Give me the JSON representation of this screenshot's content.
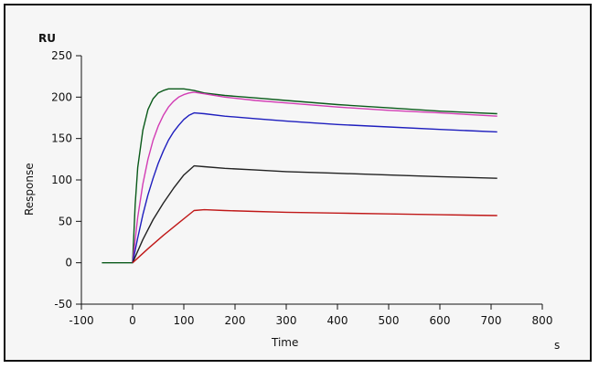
{
  "chart_data": {
    "type": "line",
    "title": "",
    "xlabel": "Time",
    "ylabel": "Response",
    "x_unit": "s",
    "y_unit": "RU",
    "xlim": [
      -100,
      800
    ],
    "ylim": [
      -50,
      250
    ],
    "x_ticks": [
      -100,
      0,
      100,
      200,
      300,
      400,
      500,
      600,
      700,
      800
    ],
    "y_ticks": [
      -50,
      0,
      50,
      100,
      150,
      200,
      250
    ],
    "grid": false,
    "series": [
      {
        "color": "#0a5a1a",
        "x": [
          -60,
          0,
          5,
          10,
          20,
          30,
          40,
          50,
          60,
          70,
          80,
          90,
          100,
          110,
          120,
          140,
          180,
          240,
          300,
          400,
          500,
          600,
          712
        ],
        "y": [
          0,
          0,
          70,
          115,
          160,
          185,
          198,
          205,
          208,
          210,
          210,
          210,
          210,
          209,
          208,
          205,
          202,
          199,
          196,
          191,
          187,
          183,
          180
        ]
      },
      {
        "color": "#d23cb4",
        "x": [
          0,
          10,
          20,
          30,
          40,
          50,
          60,
          70,
          80,
          90,
          100,
          110,
          120,
          140,
          180,
          240,
          300,
          400,
          500,
          600,
          712
        ],
        "y": [
          0,
          55,
          95,
          125,
          148,
          165,
          178,
          188,
          195,
          200,
          203,
          205,
          206,
          204,
          200,
          196,
          193,
          188,
          184,
          181,
          177
        ]
      },
      {
        "color": "#1e1ebe",
        "x": [
          0,
          10,
          20,
          30,
          40,
          50,
          60,
          70,
          80,
          90,
          100,
          110,
          120,
          140,
          180,
          240,
          300,
          400,
          500,
          600,
          712
        ],
        "y": [
          0,
          30,
          58,
          82,
          102,
          120,
          135,
          148,
          158,
          166,
          173,
          178,
          181,
          180,
          177,
          174,
          171,
          167,
          164,
          161,
          158
        ]
      },
      {
        "color": "#222222",
        "x": [
          0,
          20,
          40,
          60,
          80,
          100,
          120,
          140,
          180,
          240,
          300,
          400,
          500,
          600,
          712
        ],
        "y": [
          0,
          28,
          52,
          72,
          90,
          106,
          117,
          116,
          114,
          112,
          110,
          108,
          106,
          104,
          102
        ]
      },
      {
        "color": "#c01818",
        "x": [
          0,
          30,
          60,
          90,
          120,
          140,
          180,
          240,
          300,
          400,
          500,
          600,
          712
        ],
        "y": [
          0,
          17,
          33,
          48,
          63,
          64,
          63,
          62,
          61,
          60,
          59,
          58,
          57
        ]
      }
    ]
  }
}
